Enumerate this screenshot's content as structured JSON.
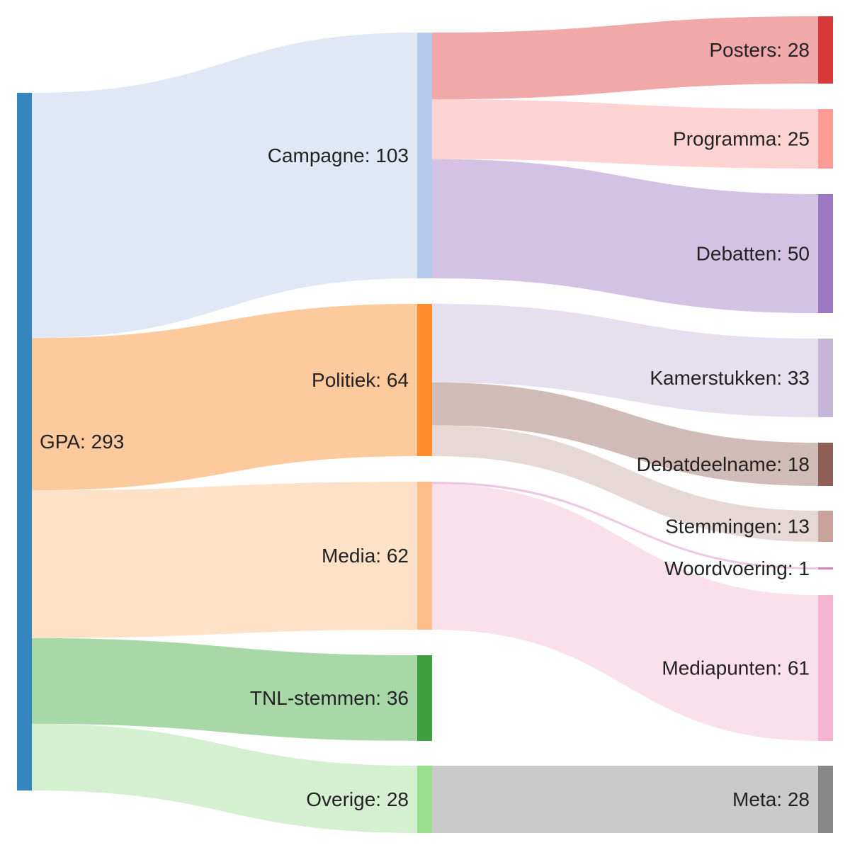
{
  "diagram": {
    "type": "sankey",
    "nodes": [
      {
        "id": "gpa",
        "label": "GPA: 293",
        "value": 293,
        "color": "#3585bf"
      },
      {
        "id": "campagne",
        "label": "Campagne: 103",
        "value": 103,
        "color": "#b4cbeb"
      },
      {
        "id": "politiek",
        "label": "Politiek: 64",
        "value": 64,
        "color": "#ff8c2d"
      },
      {
        "id": "media",
        "label": "Media: 62",
        "value": 62,
        "color": "#ffbd87"
      },
      {
        "id": "tnl-stemmen",
        "label": "TNL-stemmen: 36",
        "value": 36,
        "color": "#3fa03f"
      },
      {
        "id": "overige",
        "label": "Overige: 28",
        "value": 28,
        "color": "#98de8c"
      },
      {
        "id": "posters",
        "label": "Posters: 28",
        "value": 28,
        "color": "#d83a3a"
      },
      {
        "id": "programma",
        "label": "Programma: 25",
        "value": 25,
        "color": "#fd9c97"
      },
      {
        "id": "debatten",
        "label": "Debatten: 50",
        "value": 50,
        "color": "#9c78c3"
      },
      {
        "id": "kamerstukken",
        "label": "Kamerstukken: 33",
        "value": 33,
        "color": "#c7b5d9"
      },
      {
        "id": "debatdeelname",
        "label": "Debatdeelname: 18",
        "value": 18,
        "color": "#8e5f55"
      },
      {
        "id": "stemmingen",
        "label": "Stemmingen: 13",
        "value": 13,
        "color": "#c8a29b"
      },
      {
        "id": "woordvoering",
        "label": "Woordvoering: 1",
        "value": 1,
        "color": "#e07fc0"
      },
      {
        "id": "mediapunten",
        "label": "Mediapunten: 61",
        "value": 61,
        "color": "#f5b5d2"
      },
      {
        "id": "meta",
        "label": "Meta: 28",
        "value": 28,
        "color": "#878787"
      }
    ],
    "links": [
      {
        "source": "gpa",
        "target": "campagne",
        "value": 103,
        "color": "#dfe8f4"
      },
      {
        "source": "gpa",
        "target": "politiek",
        "value": 64,
        "color": "#fdca9e"
      },
      {
        "source": "gpa",
        "target": "media",
        "value": 62,
        "color": "#fde2c7"
      },
      {
        "source": "gpa",
        "target": "tnl-stemmen",
        "value": 36,
        "color": "#a9d8a8"
      },
      {
        "source": "gpa",
        "target": "overige",
        "value": 28,
        "color": "#d5f0d1"
      },
      {
        "source": "campagne",
        "target": "posters",
        "value": 28,
        "color": "#f0a8a8"
      },
      {
        "source": "campagne",
        "target": "programma",
        "value": 25,
        "color": "#fdd4d3"
      },
      {
        "source": "campagne",
        "target": "debatten",
        "value": 50,
        "color": "#d3c2e3"
      },
      {
        "source": "politiek",
        "target": "kamerstukken",
        "value": 33,
        "color": "#e6dfee"
      },
      {
        "source": "politiek",
        "target": "debatdeelname",
        "value": 18,
        "color": "#d0bbb6"
      },
      {
        "source": "politiek",
        "target": "stemmingen",
        "value": 13,
        "color": "#e6d8d5"
      },
      {
        "source": "media",
        "target": "woordvoering",
        "value": 1,
        "color": "#edc8e4"
      },
      {
        "source": "media",
        "target": "mediapunten",
        "value": 61,
        "color": "#fae0eb"
      },
      {
        "source": "overige",
        "target": "meta",
        "value": 28,
        "color": "#cacaca"
      }
    ]
  }
}
